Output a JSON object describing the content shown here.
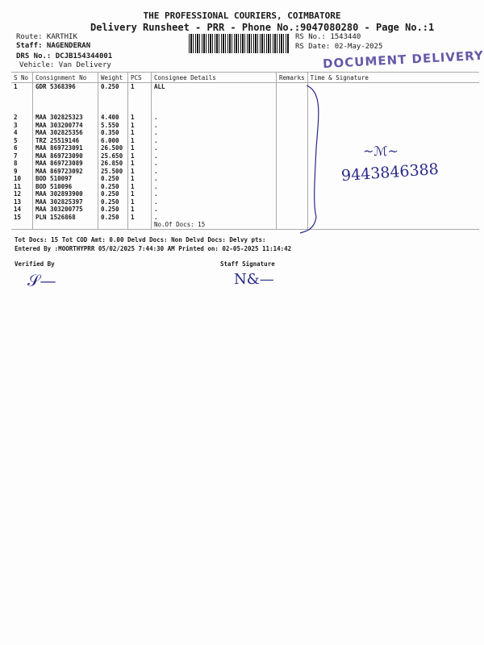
{
  "header": {
    "company": "THE PROFESSIONAL COURIERS, COIMBATORE",
    "subtitle": "Delivery Runsheet - PRR - Phone No.:9047080280 - Page No.:1"
  },
  "info": {
    "route": "Route: KARTHIK",
    "staff": "Staff: NAGENDERAN",
    "drs": "DRS No.: DCJB154344001",
    "vehicle": "Vehicle: Van Delivery",
    "rs_no": "RS No.: 1543440",
    "rs_date": "RS Date: 02-May-2025"
  },
  "stamp": "DOCUMENT DELIVERY",
  "table": {
    "headers": [
      "S No",
      "Consignment No",
      "Weight",
      "PCS",
      "Consignee Details",
      "Remarks",
      "Time & Signature"
    ],
    "rows": [
      [
        "1",
        "GDR 5368396",
        "0.250",
        "1",
        "ALL"
      ],
      [
        "2",
        "MAA 302825323",
        "4.400",
        "1",
        "."
      ],
      [
        "3",
        "MAA 303200774",
        "5.550",
        "1",
        "."
      ],
      [
        "4",
        "MAA 302825356",
        "0.350",
        "1",
        "."
      ],
      [
        "5",
        "TRZ 25519146",
        "6.000",
        "1",
        "."
      ],
      [
        "6",
        "MAA 869723091",
        "26.500",
        "1",
        "."
      ],
      [
        "7",
        "MAA 869723090",
        "25.650",
        "1",
        "."
      ],
      [
        "8",
        "MAA 869723089",
        "26.850",
        "1",
        "."
      ],
      [
        "9",
        "MAA 869723092",
        "25.500",
        "1",
        "."
      ],
      [
        "10",
        "BOD 510097",
        "0.250",
        "1",
        "."
      ],
      [
        "11",
        "BOD 510096",
        "0.250",
        "1",
        "."
      ],
      [
        "12",
        "MAA 302893900",
        "0.250",
        "1",
        "."
      ],
      [
        "13",
        "MAA 302825397",
        "0.250",
        "1",
        "."
      ],
      [
        "14",
        "MAA 303200775",
        "0.250",
        "1",
        "."
      ],
      [
        "15",
        "PLN 1526868",
        "0.250",
        "1",
        "."
      ]
    ],
    "docs_count": "No.Of Docs: 15"
  },
  "handwritten_phone": "9443846388",
  "footer": {
    "totals": "Tot Docs:  15    Tot COD Amt:    0.00     Delvd Docs:     Non Delvd Docs:     Delvy pts:",
    "entered": "Entered By :MOORTHYPRR 05/02/2025 7:44:30 AM     Printed on: 02-05-2025 11:14:42",
    "verified": "Verified By",
    "staff_sig": "Staff Signature"
  }
}
